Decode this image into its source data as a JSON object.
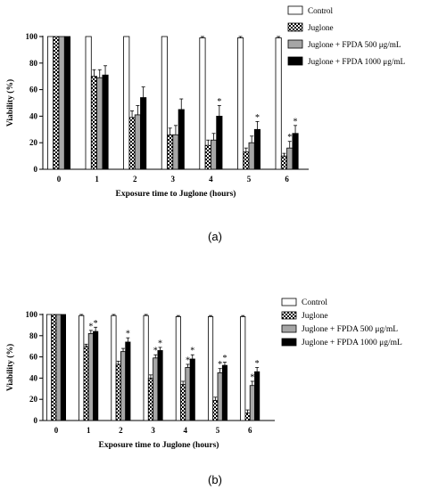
{
  "figure": {
    "caption_a": "(a)",
    "caption_b": "(b)"
  },
  "chart_data": [
    {
      "type": "bar",
      "panel_caption": "(a)",
      "xlabel": "Exposure time to Juglone (hours)",
      "ylabel": "Viability (%)",
      "ylim": [
        0,
        100
      ],
      "yticks": [
        0,
        20,
        40,
        60,
        80,
        100
      ],
      "grid": false,
      "legend_position": "top-right",
      "categories": [
        "0",
        "1",
        "2",
        "3",
        "4",
        "5",
        "6"
      ],
      "series": [
        {
          "name": "Control",
          "pattern": "white",
          "values": [
            100,
            100,
            100,
            100,
            99,
            99,
            99
          ],
          "errors": [
            0,
            0,
            0,
            0,
            1,
            1,
            1
          ],
          "sig": [
            false,
            false,
            false,
            false,
            false,
            false,
            false
          ]
        },
        {
          "name": "Juglone",
          "pattern": "checker",
          "values": [
            100,
            70,
            39,
            26,
            18,
            13,
            10
          ],
          "errors": [
            0,
            5,
            5,
            5,
            4,
            3,
            2
          ],
          "sig": [
            false,
            false,
            false,
            false,
            false,
            false,
            false
          ]
        },
        {
          "name": "Juglone + FPDA 500 μg/mL",
          "pattern": "gray",
          "values": [
            100,
            69,
            41,
            26,
            22,
            20,
            16
          ],
          "errors": [
            0,
            6,
            7,
            7,
            5,
            5,
            5
          ],
          "sig": [
            false,
            false,
            false,
            false,
            false,
            false,
            true
          ]
        },
        {
          "name": "Juglone + FPDA 1000 μg/mL",
          "pattern": "black",
          "values": [
            100,
            71,
            54,
            45,
            40,
            30,
            27
          ],
          "errors": [
            0,
            7,
            8,
            8,
            8,
            6,
            6
          ],
          "sig": [
            false,
            false,
            false,
            false,
            true,
            true,
            true
          ]
        }
      ],
      "sig_mark": "*"
    },
    {
      "type": "bar",
      "panel_caption": "(b)",
      "xlabel": "Exposure time to Juglone (hours)",
      "ylabel": "Viability (%)",
      "ylim": [
        0,
        100
      ],
      "yticks": [
        0,
        20,
        40,
        60,
        80,
        100
      ],
      "grid": false,
      "legend_position": "top-right",
      "categories": [
        "0",
        "1",
        "2",
        "3",
        "4",
        "5",
        "6"
      ],
      "series": [
        {
          "name": "Control",
          "pattern": "white",
          "values": [
            100,
            99,
            99,
            99,
            98,
            98,
            98
          ],
          "errors": [
            0,
            1,
            1,
            1,
            1,
            1,
            1
          ],
          "sig": [
            false,
            false,
            false,
            false,
            false,
            false,
            false
          ]
        },
        {
          "name": "Juglone",
          "pattern": "checker",
          "values": [
            100,
            70,
            53,
            40,
            34,
            19,
            7
          ],
          "errors": [
            0,
            2,
            3,
            3,
            3,
            3,
            3
          ],
          "sig": [
            false,
            false,
            false,
            false,
            false,
            false,
            false
          ]
        },
        {
          "name": "Juglone + FPDA 500 μg/mL",
          "pattern": "gray",
          "values": [
            100,
            82,
            65,
            59,
            50,
            45,
            33
          ],
          "errors": [
            0,
            3,
            3,
            3,
            3,
            4,
            4
          ],
          "sig": [
            false,
            true,
            false,
            true,
            true,
            true,
            true
          ]
        },
        {
          "name": "Juglone + FPDA 1000 μg/mL",
          "pattern": "black",
          "values": [
            100,
            84,
            74,
            66,
            58,
            52,
            46
          ],
          "errors": [
            0,
            4,
            4,
            3,
            4,
            3,
            4
          ],
          "sig": [
            false,
            true,
            true,
            true,
            true,
            true,
            true
          ]
        }
      ],
      "sig_mark": "*"
    }
  ]
}
